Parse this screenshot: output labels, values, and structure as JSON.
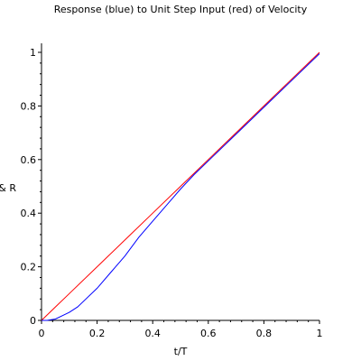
{
  "chart_data": {
    "type": "line",
    "title": "Response (blue) to Unit Step Input (red) of Velocity",
    "xlabel": "t/T",
    "ylabel": "C & R",
    "xlim": [
      0,
      1
    ],
    "ylim": [
      0,
      1
    ],
    "x_ticks": [
      "0",
      "0.2",
      "0.4",
      "0.6",
      "0.8",
      "1"
    ],
    "y_ticks": [
      "0",
      "0.2",
      "0.4",
      "0.6",
      "0.8",
      "1"
    ],
    "grid": false,
    "series": [
      {
        "color": "#ff0000",
        "x": [
          0,
          0.05,
          0.1,
          0.2,
          0.3,
          0.4,
          0.5,
          0.6,
          0.7,
          0.8,
          0.9,
          1.0
        ],
        "y": [
          0,
          0.05,
          0.1,
          0.2,
          0.3,
          0.4,
          0.5,
          0.6,
          0.7,
          0.8,
          0.9,
          1.0
        ]
      },
      {
        "color": "#0000ff",
        "x": [
          0,
          0.02,
          0.05,
          0.08,
          0.1,
          0.13,
          0.16,
          0.2,
          0.25,
          0.3,
          0.35,
          0.4,
          0.45,
          0.5,
          0.55,
          0.6,
          0.7,
          0.8,
          0.9,
          1.0
        ],
        "y": [
          0,
          0.0,
          0.005,
          0.02,
          0.03,
          0.05,
          0.08,
          0.12,
          0.18,
          0.24,
          0.31,
          0.37,
          0.43,
          0.49,
          0.545,
          0.595,
          0.695,
          0.795,
          0.895,
          0.995
        ]
      }
    ]
  }
}
